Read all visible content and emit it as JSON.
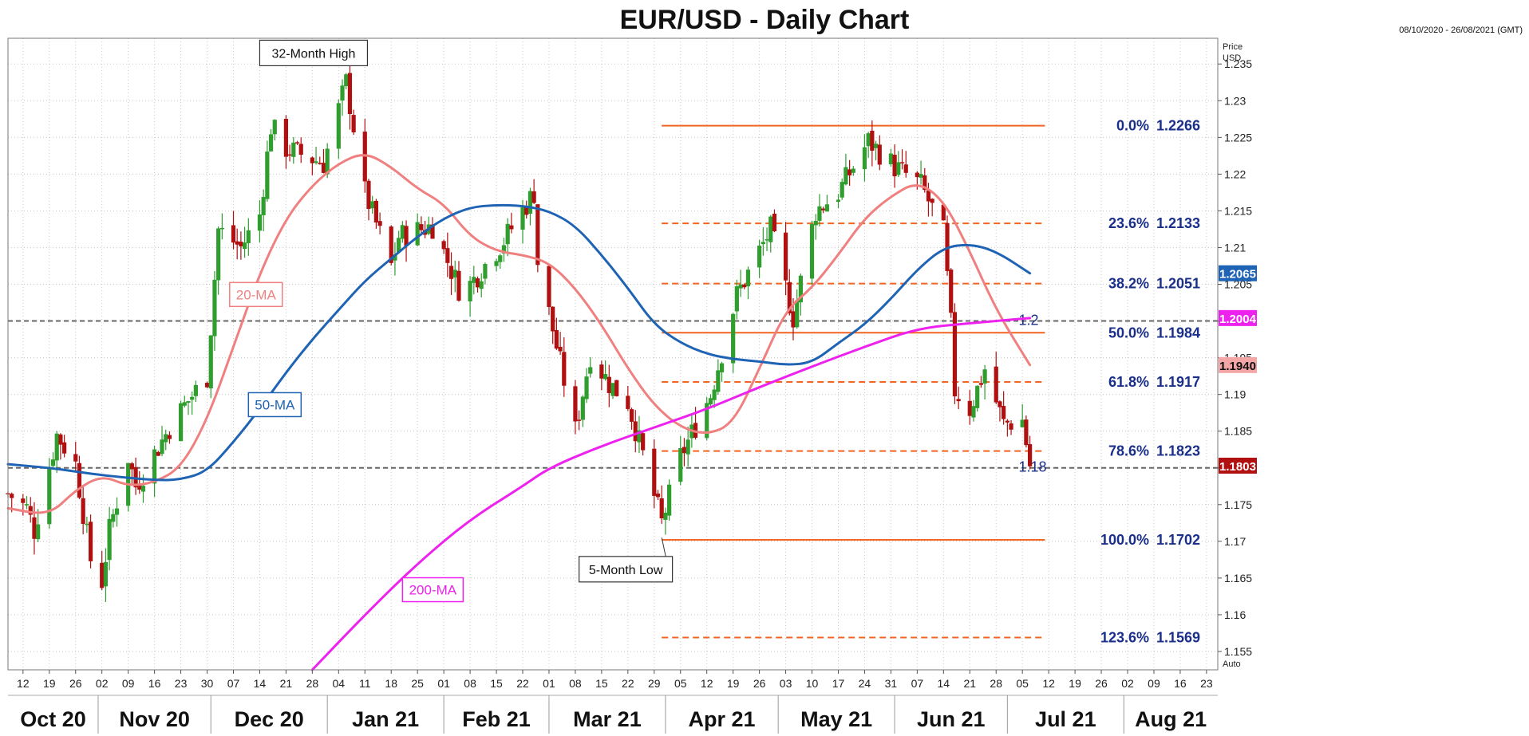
{
  "title": "EUR/USD - Daily Chart",
  "date_range": "08/10/2020 - 26/08/2021 (GMT)",
  "colors": {
    "bull": "#2f9e2f",
    "bear": "#b01010",
    "ma20": "#f08080",
    "ma50": "#1e63b4",
    "ma200": "#ee22ee",
    "fib": "#f26522",
    "fib_label": "#1a2f8a",
    "grid": "#c8c8c8"
  },
  "chart_data": {
    "type": "candlestick",
    "title": "EUR/USD - Daily Chart",
    "y_axis_title": [
      "Price",
      "USD"
    ],
    "auto_label": "Auto",
    "ylim": [
      1.1525,
      1.2385
    ],
    "y_ticks": [
      1.155,
      1.16,
      1.165,
      1.17,
      1.175,
      1.18,
      1.185,
      1.19,
      1.195,
      1.2,
      1.205,
      1.21,
      1.215,
      1.22,
      1.225,
      1.23,
      1.235
    ],
    "y_tick_labels": [
      "1.155",
      "1.16",
      "1.165",
      "1.17",
      "1.175",
      "1.18",
      "1.185",
      "1.19",
      "1.195",
      "1.2",
      "1.205",
      "1.21",
      "1.215",
      "1.22",
      "1.225",
      "1.23",
      "1.235"
    ],
    "x_start": "2020-10-08",
    "x_end": "2021-08-26",
    "x_ticks": [
      {
        "date": "2020-10-12",
        "label": "12"
      },
      {
        "date": "2020-10-19",
        "label": "19"
      },
      {
        "date": "2020-10-26",
        "label": "26"
      },
      {
        "date": "2020-11-02",
        "label": "02"
      },
      {
        "date": "2020-11-09",
        "label": "09"
      },
      {
        "date": "2020-11-16",
        "label": "16"
      },
      {
        "date": "2020-11-23",
        "label": "23"
      },
      {
        "date": "2020-11-30",
        "label": "30"
      },
      {
        "date": "2020-12-07",
        "label": "07"
      },
      {
        "date": "2020-12-14",
        "label": "14"
      },
      {
        "date": "2020-12-21",
        "label": "21"
      },
      {
        "date": "2020-12-28",
        "label": "28"
      },
      {
        "date": "2021-01-04",
        "label": "04"
      },
      {
        "date": "2021-01-11",
        "label": "11"
      },
      {
        "date": "2021-01-18",
        "label": "18"
      },
      {
        "date": "2021-01-25",
        "label": "25"
      },
      {
        "date": "2021-02-01",
        "label": "01"
      },
      {
        "date": "2021-02-08",
        "label": "08"
      },
      {
        "date": "2021-02-15",
        "label": "15"
      },
      {
        "date": "2021-02-22",
        "label": "22"
      },
      {
        "date": "2021-03-01",
        "label": "01"
      },
      {
        "date": "2021-03-08",
        "label": "08"
      },
      {
        "date": "2021-03-15",
        "label": "15"
      },
      {
        "date": "2021-03-22",
        "label": "22"
      },
      {
        "date": "2021-03-29",
        "label": "29"
      },
      {
        "date": "2021-04-05",
        "label": "05"
      },
      {
        "date": "2021-04-12",
        "label": "12"
      },
      {
        "date": "2021-04-19",
        "label": "19"
      },
      {
        "date": "2021-04-26",
        "label": "26"
      },
      {
        "date": "2021-05-03",
        "label": "03"
      },
      {
        "date": "2021-05-10",
        "label": "10"
      },
      {
        "date": "2021-05-17",
        "label": "17"
      },
      {
        "date": "2021-05-24",
        "label": "24"
      },
      {
        "date": "2021-05-31",
        "label": "31"
      },
      {
        "date": "2021-06-07",
        "label": "07"
      },
      {
        "date": "2021-06-14",
        "label": "14"
      },
      {
        "date": "2021-06-21",
        "label": "21"
      },
      {
        "date": "2021-06-28",
        "label": "28"
      },
      {
        "date": "2021-07-05",
        "label": "05"
      },
      {
        "date": "2021-07-12",
        "label": "12"
      },
      {
        "date": "2021-07-19",
        "label": "19"
      },
      {
        "date": "2021-07-26",
        "label": "26"
      },
      {
        "date": "2021-08-02",
        "label": "02"
      },
      {
        "date": "2021-08-09",
        "label": "09"
      },
      {
        "date": "2021-08-16",
        "label": "16"
      },
      {
        "date": "2021-08-23",
        "label": "23"
      }
    ],
    "months": [
      {
        "label": "Oct 20",
        "start": "2020-10-08",
        "end": "2020-11-01"
      },
      {
        "label": "Nov 20",
        "start": "2020-11-01",
        "end": "2020-12-01"
      },
      {
        "label": "Dec 20",
        "start": "2020-12-01",
        "end": "2021-01-01"
      },
      {
        "label": "Jan 21",
        "start": "2021-01-01",
        "end": "2021-02-01"
      },
      {
        "label": "Feb 21",
        "start": "2021-02-01",
        "end": "2021-03-01"
      },
      {
        "label": "Mar 21",
        "start": "2021-03-01",
        "end": "2021-04-01"
      },
      {
        "label": "Apr 21",
        "start": "2021-04-01",
        "end": "2021-05-01"
      },
      {
        "label": "May 21",
        "start": "2021-05-01",
        "end": "2021-06-01"
      },
      {
        "label": "Jun 21",
        "start": "2021-06-01",
        "end": "2021-07-01"
      },
      {
        "label": "Jul 21",
        "start": "2021-07-01",
        "end": "2021-08-01"
      },
      {
        "label": "Aug 21",
        "start": "2021-08-01",
        "end": "2021-08-26"
      }
    ],
    "price_path": [
      [
        "2020-10-08",
        1.1765
      ],
      [
        "2020-10-13",
        1.1745
      ],
      [
        "2020-10-15",
        1.1715
      ],
      [
        "2020-10-21",
        1.1845
      ],
      [
        "2020-10-26",
        1.1805
      ],
      [
        "2020-10-30",
        1.1675
      ],
      [
        "2020-11-02",
        1.1645
      ],
      [
        "2020-11-04",
        1.1715
      ],
      [
        "2020-11-09",
        1.1815
      ],
      [
        "2020-11-11",
        1.1775
      ],
      [
        "2020-11-20",
        1.1855
      ],
      [
        "2020-11-24",
        1.1885
      ],
      [
        "2020-11-30",
        1.1925
      ],
      [
        "2020-12-03",
        1.2125
      ],
      [
        "2020-12-09",
        1.21
      ],
      [
        "2020-12-14",
        1.2145
      ],
      [
        "2020-12-17",
        1.2265
      ],
      [
        "2020-12-21",
        1.2235
      ],
      [
        "2020-12-31",
        1.2215
      ],
      [
        "2021-01-06",
        1.2325
      ],
      [
        "2021-01-11",
        1.2175
      ],
      [
        "2021-01-18",
        1.2075
      ],
      [
        "2021-01-20",
        1.2115
      ],
      [
        "2021-01-29",
        1.213
      ],
      [
        "2021-02-05",
        1.2045
      ],
      [
        "2021-02-08",
        1.205
      ],
      [
        "2021-02-17",
        1.211
      ],
      [
        "2021-02-25",
        1.2175
      ],
      [
        "2021-02-26",
        1.208
      ],
      [
        "2021-03-08",
        1.185
      ],
      [
        "2021-03-12",
        1.1955
      ],
      [
        "2021-03-17",
        1.1915
      ],
      [
        "2021-03-22",
        1.189
      ],
      [
        "2021-03-31",
        1.1725
      ],
      [
        "2021-04-05",
        1.1815
      ],
      [
        "2021-04-13",
        1.19
      ],
      [
        "2021-04-20",
        1.2035
      ],
      [
        "2021-04-29",
        1.2125
      ],
      [
        "2021-05-05",
        1.2005
      ],
      [
        "2021-05-11",
        1.215
      ],
      [
        "2021-05-17",
        1.2175
      ],
      [
        "2021-05-25",
        1.2245
      ],
      [
        "2021-06-01",
        1.221
      ],
      [
        "2021-06-08",
        1.2185
      ],
      [
        "2021-06-14",
        1.212
      ],
      [
        "2021-06-16",
        1.1995
      ],
      [
        "2021-06-17",
        1.1905
      ],
      [
        "2021-06-21",
        1.188
      ],
      [
        "2021-06-25",
        1.1935
      ],
      [
        "2021-06-30",
        1.186
      ],
      [
        "2021-07-05",
        1.1865
      ],
      [
        "2021-07-07",
        1.1803
      ]
    ],
    "ma_20": [
      [
        "2020-10-08",
        1.1745
      ],
      [
        "2020-10-19",
        1.1735
      ],
      [
        "2020-10-26",
        1.177
      ],
      [
        "2020-11-02",
        1.179
      ],
      [
        "2020-11-09",
        1.1775
      ],
      [
        "2020-11-16",
        1.178
      ],
      [
        "2020-11-23",
        1.18
      ],
      [
        "2020-11-30",
        1.1865
      ],
      [
        "2020-12-07",
        1.1965
      ],
      [
        "2020-12-14",
        1.2065
      ],
      [
        "2020-12-21",
        1.214
      ],
      [
        "2020-12-28",
        1.2185
      ],
      [
        "2021-01-04",
        1.2215
      ],
      [
        "2021-01-11",
        1.223
      ],
      [
        "2021-01-18",
        1.221
      ],
      [
        "2021-01-25",
        1.218
      ],
      [
        "2021-02-01",
        1.216
      ],
      [
        "2021-02-08",
        1.2115
      ],
      [
        "2021-02-15",
        1.2095
      ],
      [
        "2021-02-22",
        1.209
      ],
      [
        "2021-03-01",
        1.208
      ],
      [
        "2021-03-08",
        1.2045
      ],
      [
        "2021-03-15",
        1.1995
      ],
      [
        "2021-03-22",
        1.1935
      ],
      [
        "2021-03-29",
        1.1885
      ],
      [
        "2021-04-05",
        1.1855
      ],
      [
        "2021-04-12",
        1.1845
      ],
      [
        "2021-04-19",
        1.186
      ],
      [
        "2021-04-26",
        1.1935
      ],
      [
        "2021-05-03",
        1.2015
      ],
      [
        "2021-05-10",
        1.2045
      ],
      [
        "2021-05-17",
        1.209
      ],
      [
        "2021-05-24",
        1.214
      ],
      [
        "2021-05-31",
        1.217
      ],
      [
        "2021-06-07",
        1.219
      ],
      [
        "2021-06-14",
        1.2165
      ],
      [
        "2021-06-21",
        1.2095
      ],
      [
        "2021-06-28",
        1.2015
      ],
      [
        "2021-07-07",
        1.194
      ]
    ],
    "ma_50": [
      [
        "2020-10-08",
        1.1805
      ],
      [
        "2020-10-19",
        1.18
      ],
      [
        "2020-10-26",
        1.1795
      ],
      [
        "2020-11-02",
        1.179
      ],
      [
        "2020-11-16",
        1.1783
      ],
      [
        "2020-11-23",
        1.1784
      ],
      [
        "2020-11-30",
        1.1795
      ],
      [
        "2020-12-07",
        1.1835
      ],
      [
        "2020-12-14",
        1.188
      ],
      [
        "2020-12-21",
        1.193
      ],
      [
        "2020-12-28",
        1.1975
      ],
      [
        "2021-01-04",
        1.2015
      ],
      [
        "2021-01-11",
        1.2055
      ],
      [
        "2021-01-18",
        1.2085
      ],
      [
        "2021-01-25",
        1.2115
      ],
      [
        "2021-02-01",
        1.214
      ],
      [
        "2021-02-08",
        1.2155
      ],
      [
        "2021-02-15",
        1.2158
      ],
      [
        "2021-02-22",
        1.2157
      ],
      [
        "2021-03-01",
        1.215
      ],
      [
        "2021-03-08",
        1.213
      ],
      [
        "2021-03-15",
        1.209
      ],
      [
        "2021-03-22",
        1.2045
      ],
      [
        "2021-03-29",
        1.1995
      ],
      [
        "2021-04-05",
        1.197
      ],
      [
        "2021-04-12",
        1.1955
      ],
      [
        "2021-04-19",
        1.1948
      ],
      [
        "2021-04-26",
        1.1945
      ],
      [
        "2021-05-03",
        1.194
      ],
      [
        "2021-05-10",
        1.1943
      ],
      [
        "2021-05-17",
        1.197
      ],
      [
        "2021-05-24",
        1.1995
      ],
      [
        "2021-05-31",
        1.203
      ],
      [
        "2021-06-07",
        1.207
      ],
      [
        "2021-06-14",
        1.21
      ],
      [
        "2021-06-21",
        1.2105
      ],
      [
        "2021-06-28",
        1.2095
      ],
      [
        "2021-07-07",
        1.2065
      ]
    ],
    "ma_200": [
      [
        "2020-12-28",
        1.1525
      ],
      [
        "2021-01-11",
        1.16
      ],
      [
        "2021-01-25",
        1.167
      ],
      [
        "2021-02-08",
        1.173
      ],
      [
        "2021-02-22",
        1.1775
      ],
      [
        "2021-03-01",
        1.18
      ],
      [
        "2021-03-15",
        1.183
      ],
      [
        "2021-03-29",
        1.1855
      ],
      [
        "2021-04-12",
        1.188
      ],
      [
        "2021-04-26",
        1.191
      ],
      [
        "2021-05-10",
        1.1938
      ],
      [
        "2021-05-24",
        1.1965
      ],
      [
        "2021-06-07",
        1.199
      ],
      [
        "2021-06-21",
        1.1997
      ],
      [
        "2021-07-07",
        1.2004
      ]
    ],
    "series_labels": [
      {
        "key": "ma_20",
        "label": "20-MA",
        "at": [
          "2020-12-06",
          1.2035
        ]
      },
      {
        "key": "ma_50",
        "label": "50-MA",
        "at": [
          "2020-12-11",
          1.1885
        ]
      },
      {
        "key": "ma_200",
        "label": "200-MA",
        "at": [
          "2021-01-21",
          1.1633
        ]
      }
    ],
    "fibonacci": {
      "start": "2021-03-31",
      "end": "2021-07-11",
      "levels": [
        {
          "pct": "0.0%",
          "value": "1.2266",
          "price": 1.2266,
          "style": "solid"
        },
        {
          "pct": "23.6%",
          "value": "1.2133",
          "price": 1.2133,
          "style": "dashed"
        },
        {
          "pct": "38.2%",
          "value": "1.2051",
          "price": 1.2051,
          "style": "dashed"
        },
        {
          "pct": "50.0%",
          "value": "1.1984",
          "price": 1.1984,
          "style": "solid"
        },
        {
          "pct": "61.8%",
          "value": "1.1917",
          "price": 1.1917,
          "style": "dashed"
        },
        {
          "pct": "78.6%",
          "value": "1.1823",
          "price": 1.1823,
          "style": "dashed"
        },
        {
          "pct": "100.0%",
          "value": "1.1702",
          "price": 1.1702,
          "style": "solid"
        },
        {
          "pct": "123.6%",
          "value": "1.1569",
          "price": 1.1569,
          "style": "dashed"
        }
      ]
    },
    "horizontal_lines": [
      {
        "price": 1.2,
        "label": "1.2"
      },
      {
        "price": 1.18,
        "label": "1.18"
      }
    ],
    "price_tags": [
      {
        "value": "1.2065",
        "price": 1.2065,
        "color": "#1e63b4",
        "text_color": "#ffffff"
      },
      {
        "value": "1.2004",
        "price": 1.2004,
        "color": "#ee22ee",
        "text_color": "#ffffff"
      },
      {
        "value": "1.1940",
        "price": 1.194,
        "color": "#f4a6a6",
        "text_color": "#111111"
      },
      {
        "value": "1.1803",
        "price": 1.1803,
        "color": "#b01010",
        "text_color": "#ffffff"
      }
    ],
    "annotations": [
      {
        "text": "32-Month High",
        "box_at": [
          "2020-12-14",
          1.2365
        ],
        "point": [
          "2021-01-06",
          1.235
        ]
      },
      {
        "text": "5-Month Low",
        "box_at": [
          "2021-03-09",
          1.1662
        ],
        "point": [
          "2021-03-31",
          1.1705
        ]
      }
    ]
  }
}
